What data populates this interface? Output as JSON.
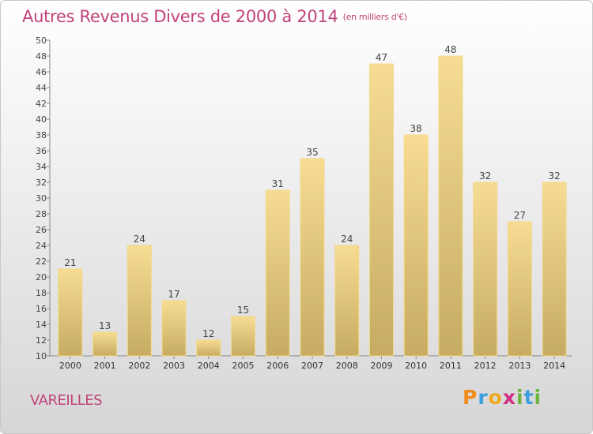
{
  "header": {
    "title": "Autres Revenus Divers de 2000 à 2014",
    "unit": "(en milliers d'€)"
  },
  "footer": {
    "commune": "VAREILLES",
    "logo_text": "Proxiti"
  },
  "colors": {
    "title": "#c0437a",
    "bar_top": "#f7dc93",
    "bar_bottom": "#c6ab63"
  },
  "chart_data": {
    "type": "bar",
    "title": "Autres Revenus Divers de 2000 à 2014",
    "subtitle": "(en milliers d'€)",
    "categories": [
      "2000",
      "2001",
      "2002",
      "2003",
      "2004",
      "2005",
      "2006",
      "2007",
      "2008",
      "2009",
      "2010",
      "2011",
      "2012",
      "2013",
      "2014"
    ],
    "values": [
      21,
      13,
      24,
      17,
      12,
      15,
      31,
      35,
      24,
      47,
      38,
      48,
      32,
      27,
      32
    ],
    "ylim": [
      10,
      50
    ],
    "ytick_step": 2,
    "xlabel": "",
    "ylabel": "",
    "grid": false,
    "data_labels": true
  }
}
